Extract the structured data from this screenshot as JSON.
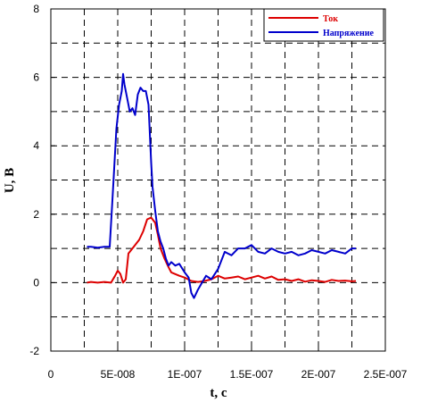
{
  "chart_data": {
    "type": "line",
    "title": "",
    "xlabel": "t, c",
    "ylabel": "U, B",
    "xlim": [
      0,
      2.5e-07
    ],
    "ylim": [
      -2,
      8
    ],
    "x_ticks": [
      0,
      5e-08,
      1e-07,
      1.5e-07,
      2e-07,
      2.5e-07
    ],
    "x_tick_labels": [
      "0",
      "5E-008",
      "1E-007",
      "1.5E-007",
      "2E-007",
      "2.5E-007"
    ],
    "y_ticks": [
      -2,
      0,
      2,
      4,
      6,
      8
    ],
    "y_tick_labels": [
      "-2",
      "0",
      "2",
      "4",
      "6",
      "8"
    ],
    "grid": "dashed",
    "legend_position": "top-right",
    "series": [
      {
        "name": "Ток",
        "color": "#dd0000",
        "x": [
          2.7e-08,
          3e-08,
          3.5e-08,
          4e-08,
          4.5e-08,
          4.8e-08,
          5e-08,
          5.2e-08,
          5.4e-08,
          5.6e-08,
          5.8e-08,
          6e-08,
          6.3e-08,
          6.6e-08,
          6.9e-08,
          7.2e-08,
          7.5e-08,
          7.8e-08,
          8e-08,
          8.2e-08,
          8.5e-08,
          8.8e-08,
          9e-08,
          9.3e-08,
          9.6e-08,
          1e-07,
          1.05e-07,
          1.1e-07,
          1.15e-07,
          1.2e-07,
          1.25e-07,
          1.3e-07,
          1.35e-07,
          1.4e-07,
          1.45e-07,
          1.5e-07,
          1.55e-07,
          1.6e-07,
          1.65e-07,
          1.7e-07,
          1.75e-07,
          1.8e-07,
          1.85e-07,
          1.9e-07,
          1.95e-07,
          2e-07,
          2.05e-07,
          2.1e-07,
          2.15e-07,
          2.2e-07,
          2.25e-07,
          2.28e-07
        ],
        "y": [
          0.0,
          0.02,
          0.0,
          0.02,
          0.0,
          0.2,
          0.35,
          0.25,
          0.0,
          0.1,
          0.85,
          0.95,
          1.1,
          1.25,
          1.5,
          1.85,
          1.9,
          1.75,
          1.4,
          1.0,
          0.7,
          0.45,
          0.3,
          0.25,
          0.2,
          0.15,
          0.05,
          0.02,
          0.05,
          0.1,
          0.2,
          0.12,
          0.15,
          0.18,
          0.1,
          0.15,
          0.2,
          0.12,
          0.18,
          0.08,
          0.1,
          0.05,
          0.1,
          0.03,
          0.07,
          0.05,
          0.02,
          0.08,
          0.05,
          0.06,
          0.04,
          0.05
        ]
      },
      {
        "name": "Напряжение",
        "color": "#0000cc",
        "x": [
          2.7e-08,
          3e-08,
          3.5e-08,
          4e-08,
          4.4e-08,
          4.6e-08,
          4.9e-08,
          5.1e-08,
          5.3e-08,
          5.4e-08,
          5.5e-08,
          5.7e-08,
          5.9e-08,
          6.1e-08,
          6.3e-08,
          6.5e-08,
          6.7e-08,
          6.9e-08,
          7.1e-08,
          7.3e-08,
          7.5e-08,
          7.6e-08,
          7.8e-08,
          8e-08,
          8.2e-08,
          8.4e-08,
          8.6e-08,
          8.8e-08,
          9e-08,
          9.3e-08,
          9.6e-08,
          1e-07,
          1.03e-07,
          1.05e-07,
          1.07e-07,
          1.1e-07,
          1.13e-07,
          1.16e-07,
          1.2e-07,
          1.25e-07,
          1.3e-07,
          1.35e-07,
          1.4e-07,
          1.45e-07,
          1.5e-07,
          1.55e-07,
          1.6e-07,
          1.65e-07,
          1.7e-07,
          1.75e-07,
          1.8e-07,
          1.85e-07,
          1.9e-07,
          1.95e-07,
          2e-07,
          2.05e-07,
          2.1e-07,
          2.15e-07,
          2.2e-07,
          2.25e-07,
          2.28e-07
        ],
        "y": [
          1.05,
          1.05,
          1.02,
          1.05,
          1.05,
          2.4,
          4.5,
          5.2,
          5.6,
          6.1,
          5.8,
          5.4,
          5.0,
          5.1,
          4.9,
          5.5,
          5.7,
          5.6,
          5.6,
          5.2,
          3.5,
          2.8,
          2.1,
          1.5,
          1.2,
          1.0,
          0.7,
          0.5,
          0.6,
          0.5,
          0.55,
          0.3,
          0.15,
          -0.3,
          -0.45,
          -0.2,
          0.0,
          0.2,
          0.1,
          0.4,
          0.9,
          0.8,
          1.0,
          1.0,
          1.1,
          0.9,
          0.85,
          1.0,
          0.9,
          0.85,
          0.9,
          0.8,
          0.85,
          0.95,
          0.9,
          0.85,
          0.95,
          0.9,
          0.85,
          1.0,
          1.0
        ]
      }
    ]
  }
}
